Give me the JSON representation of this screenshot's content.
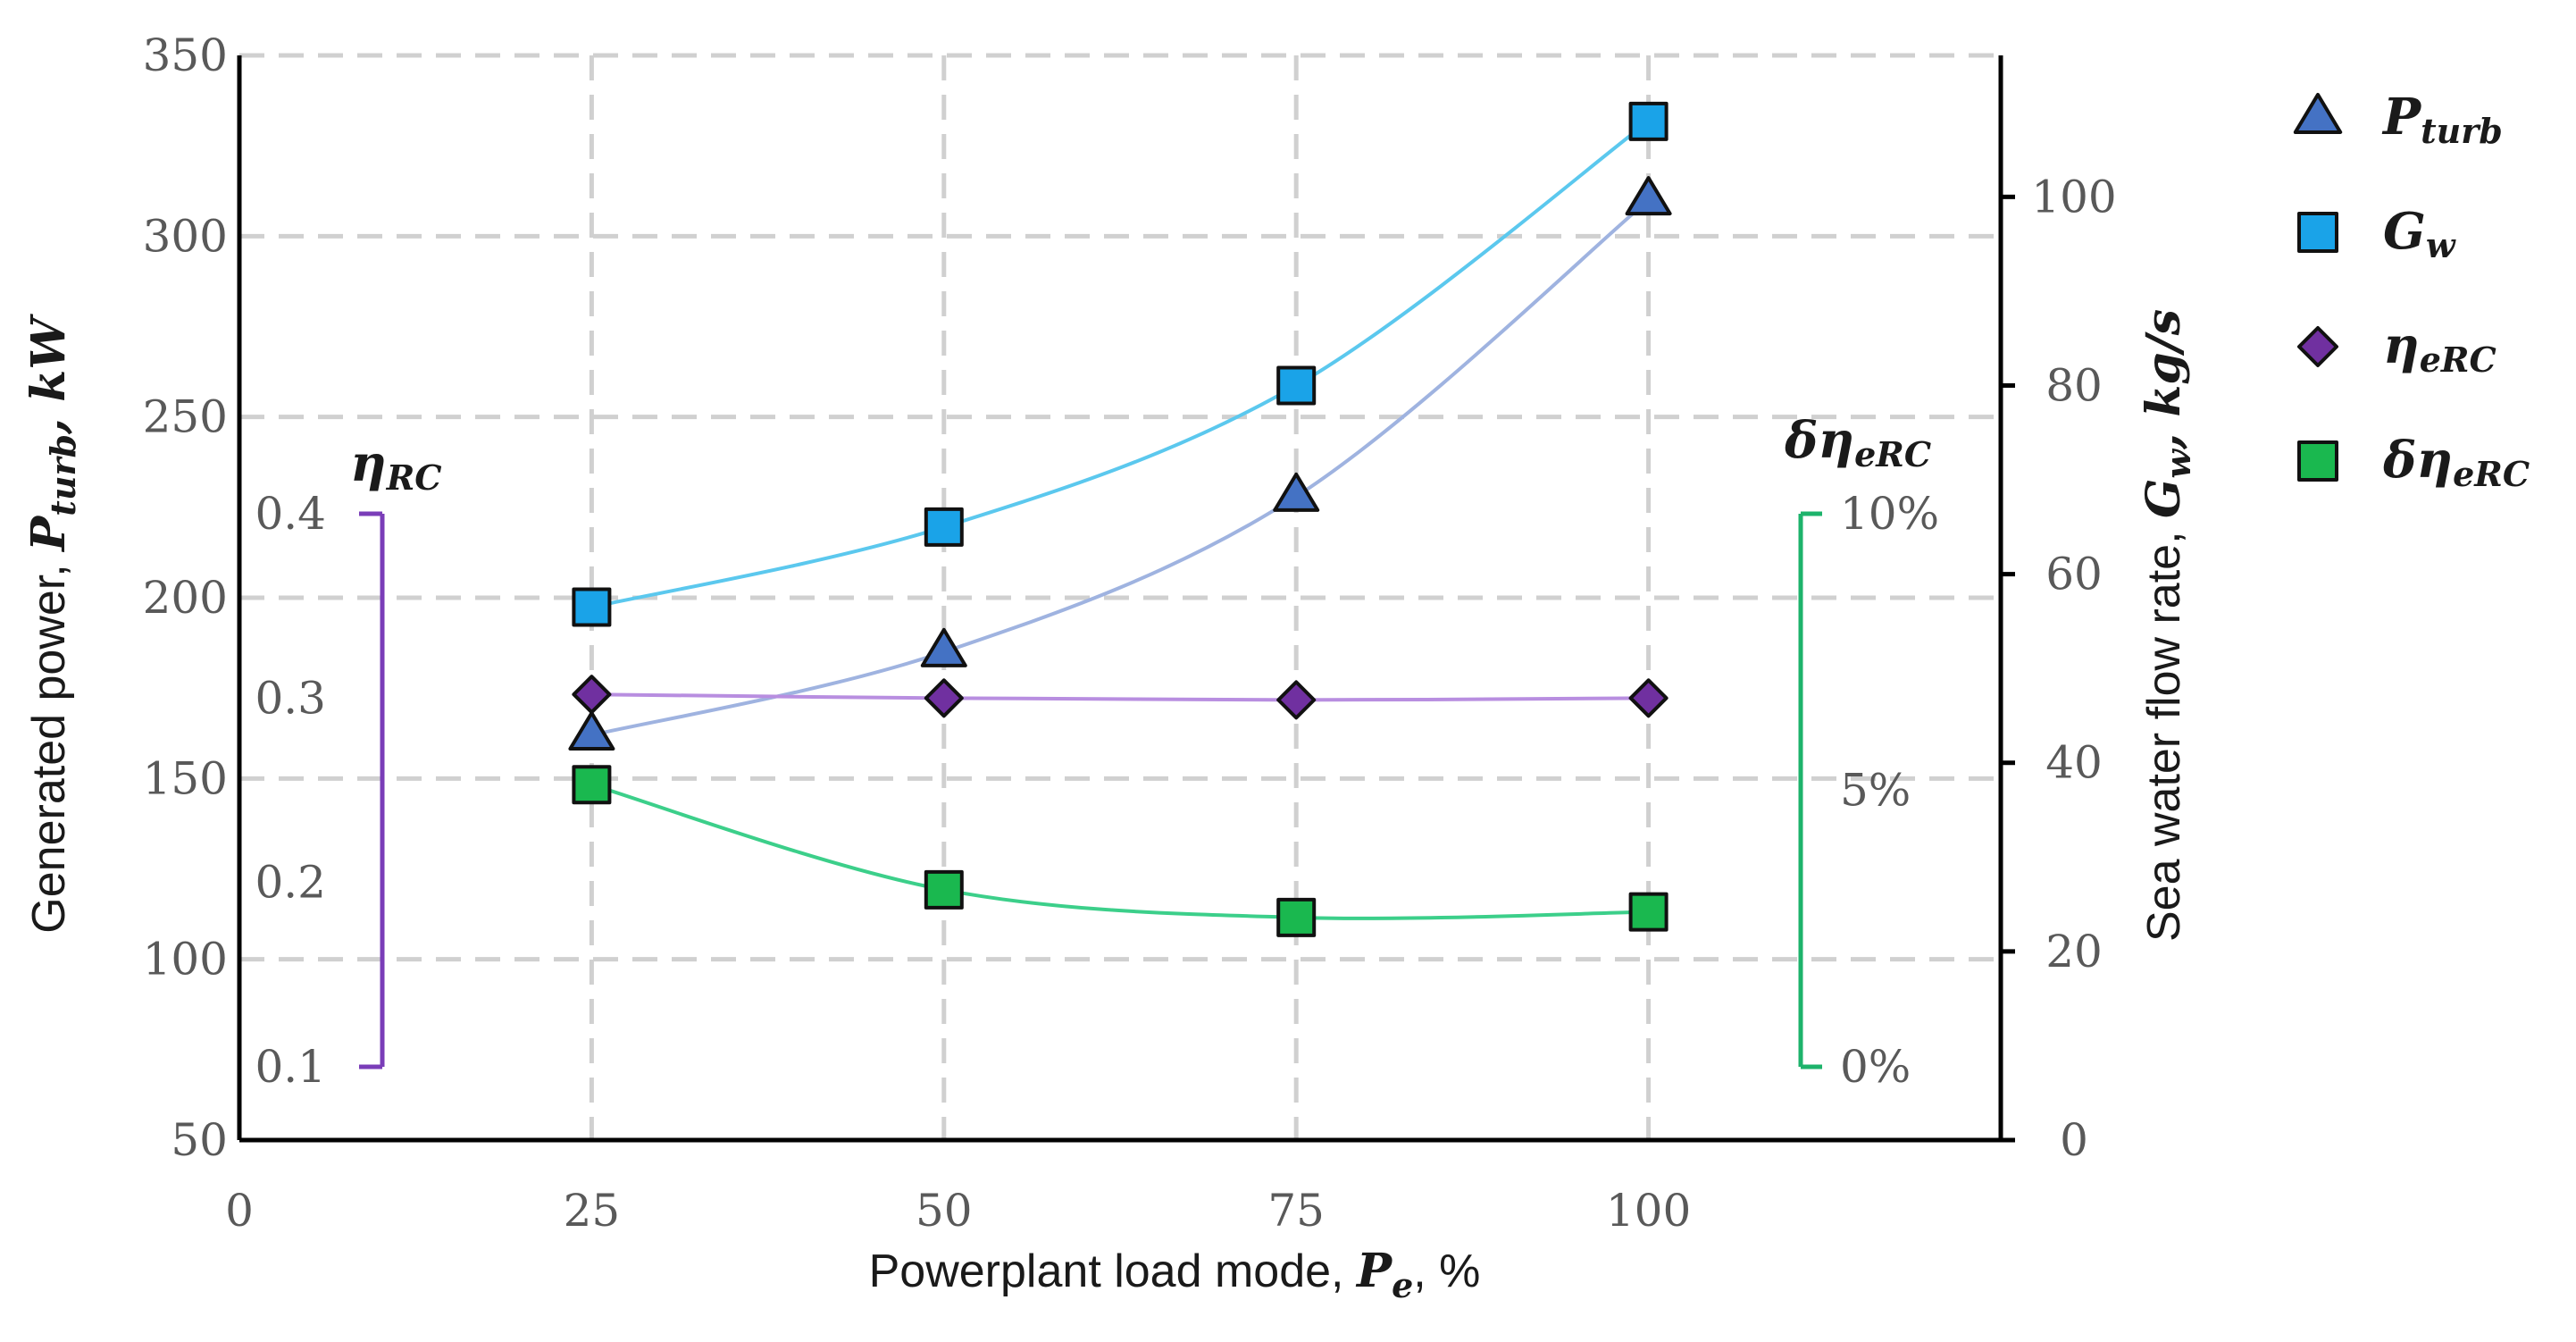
{
  "chart_data": {
    "type": "line",
    "x": [
      25,
      50,
      75,
      100
    ],
    "xlabel": "Powerplant load mode, ",
    "xlabel_symbol": "P",
    "xlabel_symbol_sub": "e",
    "xlabel_unit": ", %",
    "xlim": [
      0,
      125
    ],
    "xticks": [
      "0",
      "25",
      "50",
      "75",
      "100"
    ],
    "left_axis": {
      "label": "Generated power, ",
      "label_symbol": "P",
      "label_symbol_sub": "turb",
      "label_unit": ", kW",
      "ylim": [
        50,
        350
      ],
      "ticks": [
        "50",
        "100",
        "150",
        "200",
        "250",
        "300",
        "350"
      ]
    },
    "right_axis": {
      "label": "Sea water flow rate, ",
      "label_symbol": "G",
      "label_symbol_sub": "w",
      "label_unit": ", kg/s",
      "ylim": [
        0,
        115
      ],
      "ticks": [
        "0",
        "20",
        "40",
        "60",
        "80",
        "100"
      ]
    },
    "eta_axis": {
      "title": "η",
      "title_sub": "RC",
      "range": [
        0.1,
        0.4
      ],
      "ticks": [
        "0.1",
        "0.2",
        "0.3",
        "0.4"
      ],
      "color": "#7a3db8"
    },
    "delta_axis": {
      "title": "δη",
      "title_sub": "eRC",
      "range": [
        0,
        10
      ],
      "ticks": [
        "0%",
        "5%",
        "10%"
      ],
      "color": "#1db36b"
    },
    "series": [
      {
        "name": "P",
        "name_sub": "turb",
        "axis": "left",
        "marker": "triangle",
        "color": "#4472c4",
        "line_color": "#9fb3e0",
        "values": [
          162,
          185,
          228,
          310
        ]
      },
      {
        "name": "G",
        "name_sub": "w",
        "axis": "right",
        "marker": "square",
        "color": "#1aa3e8",
        "line_color": "#5bc8ee",
        "values": [
          56.5,
          65,
          80,
          108
        ]
      },
      {
        "name": "η",
        "name_sub": "eRC",
        "axis": "eta",
        "marker": "diamond",
        "color": "#7030a0",
        "line_color": "#b88ee0",
        "values": [
          0.302,
          0.3,
          0.299,
          0.3
        ]
      },
      {
        "name": "δη",
        "name_sub": "eRC",
        "axis": "delta",
        "marker": "square",
        "color": "#1ab84f",
        "line_color": "#3ccf8a",
        "values": [
          5.1,
          3.2,
          2.7,
          2.8
        ]
      }
    ]
  }
}
